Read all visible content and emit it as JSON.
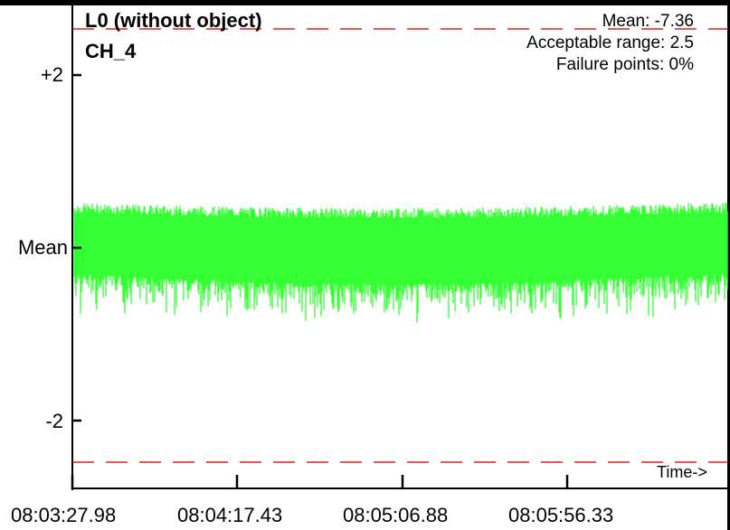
{
  "chart_data": {
    "type": "line",
    "title": "L0 (without object)",
    "subtitle": "CH_4",
    "stats": {
      "mean": "Mean: -7.36",
      "range": "Acceptable range: 2.5",
      "failure": "Failure points: 0%"
    },
    "y_ticks": [
      "+2",
      "Mean",
      "-2"
    ],
    "y_tick_values": [
      2,
      0,
      -2
    ],
    "ylim": [
      -2.5,
      2.5
    ],
    "threshold_lines": [
      2.5,
      -2.5
    ],
    "x_ticks": [
      "08:03:27.98",
      "08:04:17.43",
      "08:05:06.88",
      "08:05:56.33"
    ],
    "xlabel": "Time->",
    "series": [
      {
        "values_mean": 0.0,
        "noise_envelope": [
          -0.55,
          0.45
        ]
      }
    ],
    "colors": {
      "signal": "#33ff33",
      "threshold": "#dd2020",
      "axis": "#000000"
    },
    "grid": false
  }
}
